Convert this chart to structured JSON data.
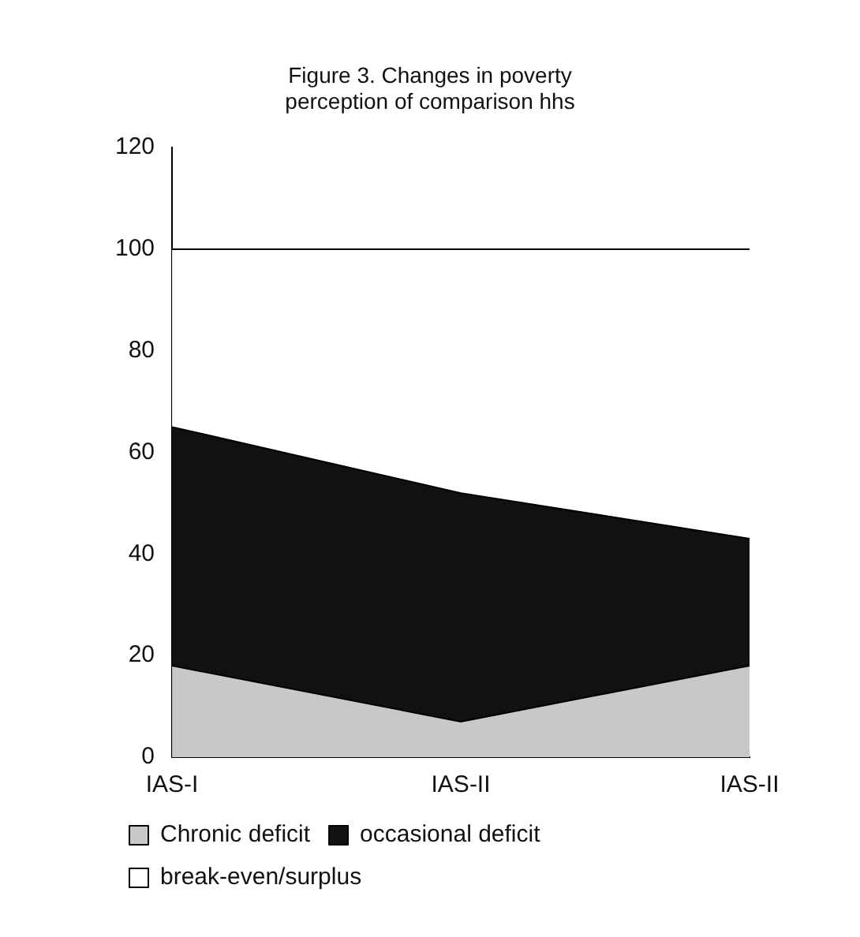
{
  "chart_data": {
    "type": "area",
    "title": "Figure 3. Changes in poverty\nperception of comparison hhs",
    "categories": [
      "IAS-I",
      "IAS-II",
      "IAS-II"
    ],
    "stacked": true,
    "series": [
      {
        "name": "Chronic deficit",
        "color": "#c8c8c8",
        "values": [
          18,
          7,
          18
        ]
      },
      {
        "name": "occasional deficit",
        "color": "#111111",
        "values": [
          47,
          45,
          25
        ]
      },
      {
        "name": "break-even/surplus",
        "color": "#ffffff",
        "values": [
          35,
          48,
          57
        ]
      }
    ],
    "ylim": [
      0,
      120
    ],
    "yticks": [
      0,
      20,
      40,
      60,
      80,
      100,
      120
    ],
    "grid": false,
    "legend": "bottom"
  }
}
